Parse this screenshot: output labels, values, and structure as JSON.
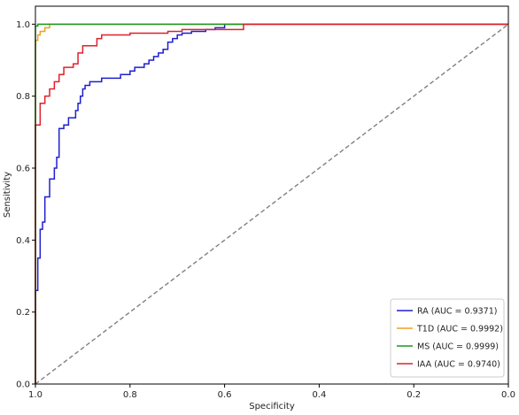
{
  "chart_data": {
    "type": "line",
    "title": "",
    "xlabel": "Specificity",
    "ylabel": "Sensitivity",
    "xlim": [
      1.0,
      0.0
    ],
    "ylim": [
      0.0,
      1.05
    ],
    "x_ticks": [
      1.0,
      0.8,
      0.6,
      0.4,
      0.2,
      0.0
    ],
    "x_tick_labels": [
      "1.0",
      "0.8",
      "0.6",
      "0.4",
      "0.2",
      "0.0"
    ],
    "y_ticks": [
      0.0,
      0.2,
      0.4,
      0.6,
      0.8,
      1.0
    ],
    "y_tick_labels": [
      "0.0",
      "0.2",
      "0.4",
      "0.6",
      "0.8",
      "1.0"
    ],
    "grid": false,
    "legend_position": "bottom-right",
    "reference_line": {
      "from": [
        1.0,
        0.0
      ],
      "to": [
        0.0,
        1.0
      ],
      "style": "dashed",
      "color": "#808080"
    },
    "series": [
      {
        "name": "RA (AUC = 0.9371)",
        "color": "#1f1fd0",
        "points": [
          [
            1.0,
            0.0
          ],
          [
            1.0,
            0.26
          ],
          [
            0.995,
            0.26
          ],
          [
            0.995,
            0.35
          ],
          [
            0.99,
            0.35
          ],
          [
            0.99,
            0.43
          ],
          [
            0.985,
            0.43
          ],
          [
            0.985,
            0.45
          ],
          [
            0.98,
            0.45
          ],
          [
            0.98,
            0.52
          ],
          [
            0.97,
            0.52
          ],
          [
            0.97,
            0.57
          ],
          [
            0.96,
            0.57
          ],
          [
            0.96,
            0.6
          ],
          [
            0.955,
            0.6
          ],
          [
            0.955,
            0.63
          ],
          [
            0.95,
            0.63
          ],
          [
            0.95,
            0.71
          ],
          [
            0.94,
            0.71
          ],
          [
            0.94,
            0.72
          ],
          [
            0.93,
            0.72
          ],
          [
            0.93,
            0.74
          ],
          [
            0.915,
            0.74
          ],
          [
            0.915,
            0.76
          ],
          [
            0.91,
            0.76
          ],
          [
            0.91,
            0.78
          ],
          [
            0.905,
            0.78
          ],
          [
            0.905,
            0.8
          ],
          [
            0.9,
            0.8
          ],
          [
            0.9,
            0.82
          ],
          [
            0.895,
            0.82
          ],
          [
            0.895,
            0.83
          ],
          [
            0.885,
            0.83
          ],
          [
            0.885,
            0.84
          ],
          [
            0.86,
            0.84
          ],
          [
            0.86,
            0.85
          ],
          [
            0.82,
            0.85
          ],
          [
            0.82,
            0.86
          ],
          [
            0.8,
            0.86
          ],
          [
            0.8,
            0.87
          ],
          [
            0.79,
            0.87
          ],
          [
            0.79,
            0.88
          ],
          [
            0.77,
            0.88
          ],
          [
            0.77,
            0.89
          ],
          [
            0.76,
            0.89
          ],
          [
            0.76,
            0.9
          ],
          [
            0.75,
            0.9
          ],
          [
            0.75,
            0.91
          ],
          [
            0.74,
            0.91
          ],
          [
            0.74,
            0.92
          ],
          [
            0.73,
            0.92
          ],
          [
            0.73,
            0.93
          ],
          [
            0.72,
            0.93
          ],
          [
            0.72,
            0.95
          ],
          [
            0.71,
            0.95
          ],
          [
            0.71,
            0.96
          ],
          [
            0.7,
            0.96
          ],
          [
            0.7,
            0.97
          ],
          [
            0.69,
            0.97
          ],
          [
            0.69,
            0.975
          ],
          [
            0.67,
            0.975
          ],
          [
            0.67,
            0.98
          ],
          [
            0.64,
            0.98
          ],
          [
            0.64,
            0.985
          ],
          [
            0.62,
            0.985
          ],
          [
            0.62,
            0.99
          ],
          [
            0.6,
            0.99
          ],
          [
            0.6,
            1.0
          ],
          [
            0.0,
            1.0
          ]
        ]
      },
      {
        "name": "T1D (AUC = 0.9992)",
        "color": "#f0a020",
        "points": [
          [
            1.0,
            0.0
          ],
          [
            1.0,
            0.955
          ],
          [
            0.995,
            0.955
          ],
          [
            0.995,
            0.97
          ],
          [
            0.99,
            0.97
          ],
          [
            0.99,
            0.98
          ],
          [
            0.98,
            0.98
          ],
          [
            0.98,
            0.99
          ],
          [
            0.97,
            0.99
          ],
          [
            0.97,
            1.0
          ],
          [
            0.0,
            1.0
          ]
        ]
      },
      {
        "name": "MS (AUC = 0.9999)",
        "color": "#1a9a1a",
        "points": [
          [
            1.0,
            0.0
          ],
          [
            1.0,
            0.995
          ],
          [
            0.995,
            0.995
          ],
          [
            0.995,
            1.0
          ],
          [
            0.0,
            1.0
          ]
        ]
      },
      {
        "name": "IAA (AUC = 0.9740)",
        "color": "#e0202a",
        "points": [
          [
            1.0,
            0.0
          ],
          [
            1.0,
            0.72
          ],
          [
            0.99,
            0.72
          ],
          [
            0.99,
            0.78
          ],
          [
            0.98,
            0.78
          ],
          [
            0.98,
            0.8
          ],
          [
            0.97,
            0.8
          ],
          [
            0.97,
            0.82
          ],
          [
            0.96,
            0.82
          ],
          [
            0.96,
            0.84
          ],
          [
            0.95,
            0.84
          ],
          [
            0.95,
            0.86
          ],
          [
            0.94,
            0.86
          ],
          [
            0.94,
            0.88
          ],
          [
            0.92,
            0.88
          ],
          [
            0.92,
            0.89
          ],
          [
            0.91,
            0.89
          ],
          [
            0.91,
            0.92
          ],
          [
            0.9,
            0.92
          ],
          [
            0.9,
            0.94
          ],
          [
            0.87,
            0.94
          ],
          [
            0.87,
            0.96
          ],
          [
            0.86,
            0.96
          ],
          [
            0.86,
            0.97
          ],
          [
            0.8,
            0.97
          ],
          [
            0.8,
            0.975
          ],
          [
            0.72,
            0.975
          ],
          [
            0.72,
            0.98
          ],
          [
            0.69,
            0.98
          ],
          [
            0.69,
            0.985
          ],
          [
            0.56,
            0.985
          ],
          [
            0.56,
            1.0
          ],
          [
            0.0,
            1.0
          ]
        ]
      }
    ]
  }
}
